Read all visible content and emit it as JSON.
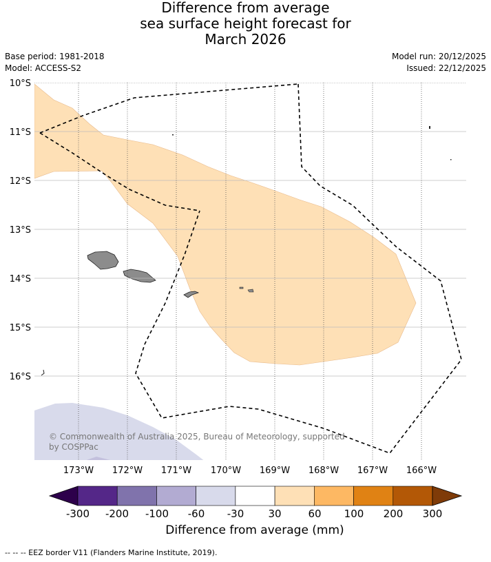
{
  "title": {
    "line1": "Difference from average",
    "line2": "sea surface height forecast for",
    "line3": "March 2026"
  },
  "meta": {
    "base_period": "Base period: 1981-2018",
    "model": "Model: ACCESS-S2",
    "model_run": "Model run: 20/12/2025",
    "issued": "Issued: 22/12/2025"
  },
  "map": {
    "lat_labels": [
      "10°S",
      "11°S",
      "12°S",
      "13°S",
      "14°S",
      "15°S",
      "16°S"
    ],
    "lon_labels": [
      "173°W",
      "172°W",
      "171°W",
      "170°W",
      "169°W",
      "168°W",
      "167°W",
      "166°W"
    ],
    "copyright": "© Commonwealth of Australia 2025, Bureau of Meteorology, supported",
    "copyright_line2": "by COSPPac"
  },
  "colorbar": {
    "ticks": [
      "-300",
      "-200",
      "-100",
      "-60",
      "-30",
      "30",
      "60",
      "100",
      "200",
      "300"
    ],
    "colors": [
      "#2d004b",
      "#542788",
      "#8073ac",
      "#b2abd2",
      "#d8daeb",
      "#ffffff",
      "#fee0b6",
      "#fdb863",
      "#e08214",
      "#b35806",
      "#7f3b08"
    ],
    "label": "Difference from average (mm)"
  },
  "footer": "--  --  -- EEZ border V11 (Flanders Marine Institute, 2019).",
  "colors": {
    "positive_anomaly": "#fee0b6",
    "negative_anomaly": "#d8daeb",
    "land": "#8c8c8c",
    "eez": "#000000"
  }
}
